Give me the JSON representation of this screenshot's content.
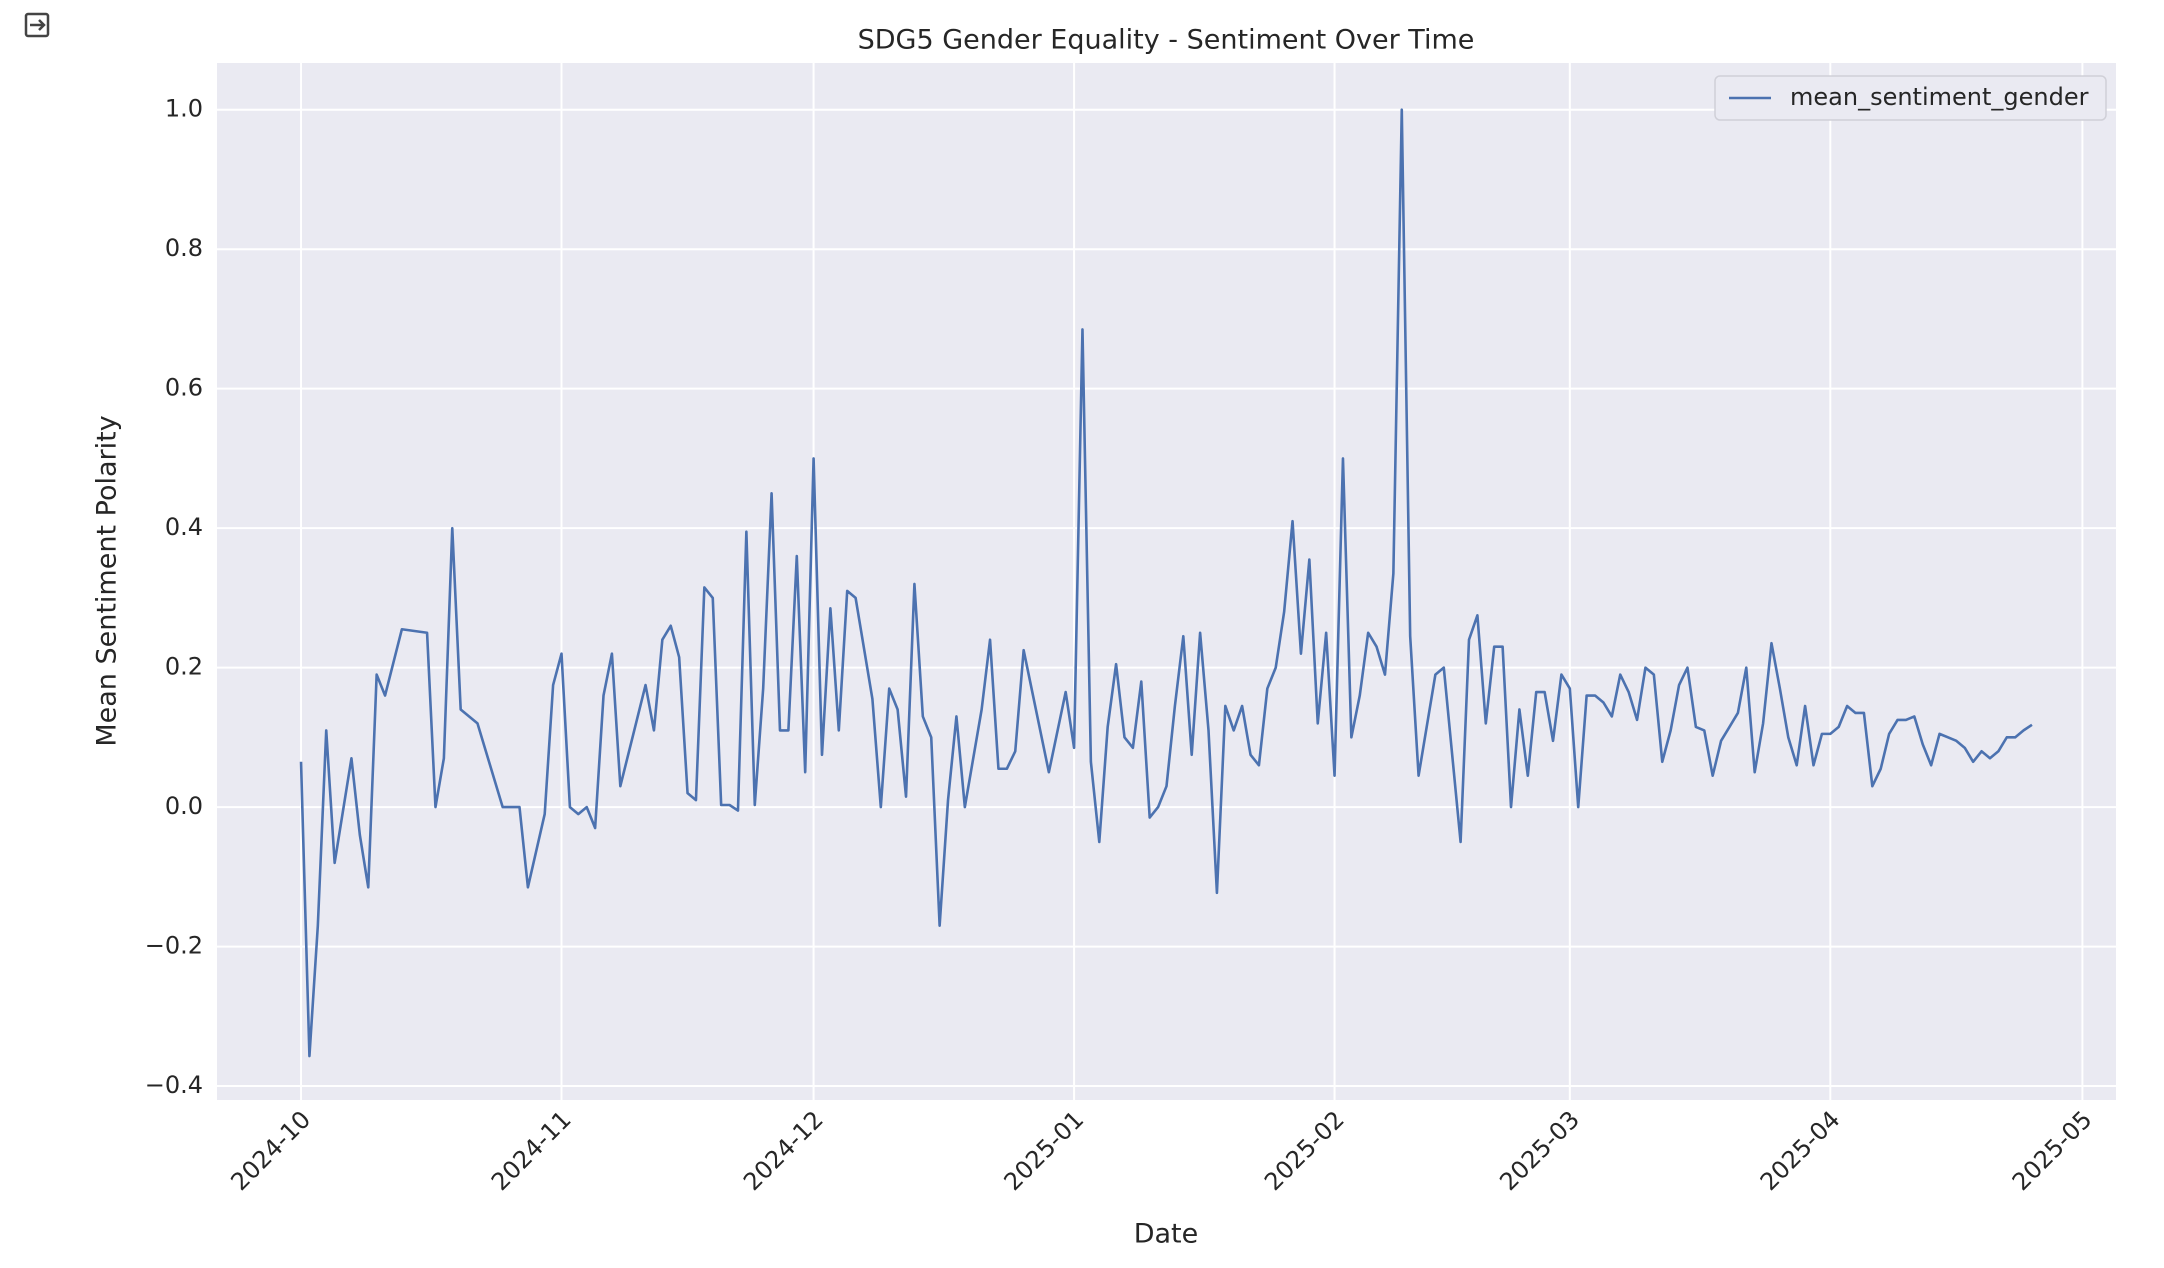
{
  "chart_data": {
    "type": "line",
    "title": "SDG5 Gender Equality - Sentiment Over Time",
    "x_label": "Date",
    "y_label": "Mean Sentiment Polarity",
    "xlim": [
      "2024-09-21",
      "2025-05-05"
    ],
    "ylim": [
      -0.42,
      1.067
    ],
    "xticks": [
      {
        "value": "2024-10-01",
        "label": "2024-10"
      },
      {
        "value": "2024-11-01",
        "label": "2024-11"
      },
      {
        "value": "2024-12-01",
        "label": "2024-12"
      },
      {
        "value": "2025-01-01",
        "label": "2025-01"
      },
      {
        "value": "2025-02-01",
        "label": "2025-02"
      },
      {
        "value": "2025-03-01",
        "label": "2025-03"
      },
      {
        "value": "2025-04-01",
        "label": "2025-04"
      },
      {
        "value": "2025-05-01",
        "label": "2025-05"
      }
    ],
    "yticks": [
      {
        "value": -0.4,
        "label": "−0.4"
      },
      {
        "value": -0.2,
        "label": "−0.2"
      },
      {
        "value": 0,
        "label": "0.0"
      },
      0.2,
      0.4,
      0.6,
      0.8,
      {
        "value": 1,
        "label": "1.0"
      }
    ],
    "grid": true,
    "legend_position": "upper right",
    "x": [
      "2024-10-01",
      "2024-10-02",
      "2024-10-03",
      "2024-10-04",
      "2024-10-05",
      "2024-10-07",
      "2024-10-08",
      "2024-10-09",
      "2024-10-10",
      "2024-10-11",
      "2024-10-13",
      "2024-10-16",
      "2024-10-17",
      "2024-10-18",
      "2024-10-19",
      "2024-10-20",
      "2024-10-22",
      "2024-10-25",
      "2024-10-27",
      "2024-10-28",
      "2024-10-30",
      "2024-10-31",
      "2024-11-01",
      "2024-11-02",
      "2024-11-03",
      "2024-11-04",
      "2024-11-05",
      "2024-11-06",
      "2024-11-07",
      "2024-11-08",
      "2024-11-11",
      "2024-11-12",
      "2024-11-13",
      "2024-11-14",
      "2024-11-15",
      "2024-11-16",
      "2024-11-17",
      "2024-11-18",
      "2024-11-19",
      "2024-11-20",
      "2024-11-21",
      "2024-11-22",
      "2024-11-23",
      "2024-11-24",
      "2024-11-25",
      "2024-11-26",
      "2024-11-27",
      "2024-11-28",
      "2024-11-29",
      "2024-11-30",
      "2024-12-01",
      "2024-12-02",
      "2024-12-03",
      "2024-12-04",
      "2024-12-05",
      "2024-12-06",
      "2024-12-08",
      "2024-12-09",
      "2024-12-10",
      "2024-12-11",
      "2024-12-12",
      "2024-12-13",
      "2024-12-14",
      "2024-12-15",
      "2024-12-16",
      "2024-12-17",
      "2024-12-18",
      "2024-12-19",
      "2024-12-21",
      "2024-12-22",
      "2024-12-23",
      "2024-12-24",
      "2024-12-25",
      "2024-12-26",
      "2024-12-29",
      "2024-12-31",
      "2025-01-01",
      "2025-01-02",
      "2025-01-03",
      "2025-01-04",
      "2025-01-05",
      "2025-01-06",
      "2025-01-07",
      "2025-01-08",
      "2025-01-09",
      "2025-01-10",
      "2025-01-11",
      "2025-01-12",
      "2025-01-13",
      "2025-01-14",
      "2025-01-15",
      "2025-01-16",
      "2025-01-17",
      "2025-01-18",
      "2025-01-19",
      "2025-01-20",
      "2025-01-21",
      "2025-01-22",
      "2025-01-23",
      "2025-01-24",
      "2025-01-25",
      "2025-01-26",
      "2025-01-27",
      "2025-01-28",
      "2025-01-29",
      "2025-01-30",
      "2025-01-31",
      "2025-02-01",
      "2025-02-02",
      "2025-02-03",
      "2025-02-04",
      "2025-02-05",
      "2025-02-06",
      "2025-02-07",
      "2025-02-08",
      "2025-02-09",
      "2025-02-10",
      "2025-02-11",
      "2025-02-13",
      "2025-02-14",
      "2025-02-16",
      "2025-02-17",
      "2025-02-18",
      "2025-02-19",
      "2025-02-20",
      "2025-02-21",
      "2025-02-22",
      "2025-02-23",
      "2025-02-24",
      "2025-02-25",
      "2025-02-26",
      "2025-02-27",
      "2025-02-28",
      "2025-03-01",
      "2025-03-02",
      "2025-03-03",
      "2025-03-04",
      "2025-03-05",
      "2025-03-06",
      "2025-03-07",
      "2025-03-08",
      "2025-03-09",
      "2025-03-10",
      "2025-03-11",
      "2025-03-12",
      "2025-03-13",
      "2025-03-14",
      "2025-03-15",
      "2025-03-16",
      "2025-03-17",
      "2025-03-18",
      "2025-03-19",
      "2025-03-20",
      "2025-03-21",
      "2025-03-22",
      "2025-03-23",
      "2025-03-24",
      "2025-03-25",
      "2025-03-26",
      "2025-03-27",
      "2025-03-28",
      "2025-03-29",
      "2025-03-30",
      "2025-03-31",
      "2025-04-01",
      "2025-04-02",
      "2025-04-03",
      "2025-04-04",
      "2025-04-05",
      "2025-04-06",
      "2025-04-07",
      "2025-04-08",
      "2025-04-09",
      "2025-04-10",
      "2025-04-11",
      "2025-04-12",
      "2025-04-13",
      "2025-04-14",
      "2025-04-15",
      "2025-04-16",
      "2025-04-17",
      "2025-04-18",
      "2025-04-19",
      "2025-04-20",
      "2025-04-21",
      "2025-04-22",
      "2025-04-23",
      "2025-04-24",
      "2025-04-25"
    ],
    "series": [
      {
        "name": "mean_sentiment_gender",
        "color": "#4c72b0",
        "values": [
          0.065,
          -0.357,
          -0.17,
          0.11,
          -0.08,
          0.07,
          -0.04,
          -0.115,
          0.19,
          0.16,
          0.255,
          0.25,
          0.0,
          0.07,
          0.4,
          0.14,
          0.12,
          0.0,
          0.0,
          -0.115,
          -0.01,
          0.175,
          0.22,
          0.0,
          -0.01,
          0.0,
          -0.03,
          0.16,
          0.22,
          0.03,
          0.175,
          0.11,
          0.24,
          0.26,
          0.215,
          0.02,
          0.01,
          0.315,
          0.3,
          0.003,
          0.003,
          -0.005,
          0.395,
          0.003,
          0.17,
          0.45,
          0.11,
          0.11,
          0.36,
          0.05,
          0.5,
          0.075,
          0.285,
          0.11,
          0.31,
          0.3,
          0.155,
          0.0,
          0.17,
          0.14,
          0.015,
          0.32,
          0.13,
          0.1,
          -0.17,
          0.01,
          0.13,
          0.0,
          0.14,
          0.24,
          0.055,
          0.055,
          0.08,
          0.225,
          0.05,
          0.165,
          0.085,
          0.685,
          0.065,
          -0.05,
          0.115,
          0.205,
          0.1,
          0.085,
          0.18,
          -0.015,
          0.0,
          0.03,
          0.145,
          0.245,
          0.075,
          0.25,
          0.11,
          -0.123,
          0.145,
          0.11,
          0.145,
          0.075,
          0.06,
          0.17,
          0.2,
          0.28,
          0.41,
          0.22,
          0.355,
          0.12,
          0.25,
          0.045,
          0.5,
          0.1,
          0.16,
          0.25,
          0.23,
          0.19,
          0.335,
          1.0,
          0.245,
          0.045,
          0.19,
          0.2,
          -0.05,
          0.24,
          0.275,
          0.12,
          0.23,
          0.23,
          0.0,
          0.14,
          0.045,
          0.165,
          0.165,
          0.095,
          0.19,
          0.17,
          0.0,
          0.16,
          0.16,
          0.15,
          0.13,
          0.19,
          0.165,
          0.125,
          0.2,
          0.19,
          0.065,
          0.11,
          0.175,
          0.2,
          0.115,
          0.11,
          0.045,
          0.095,
          0.115,
          0.135,
          0.2,
          0.05,
          0.12,
          0.235,
          0.17,
          0.1,
          0.06,
          0.145,
          0.06,
          0.105,
          0.105,
          0.115,
          0.145,
          0.135,
          0.135,
          0.03,
          0.055,
          0.105,
          0.125,
          0.125,
          0.13,
          0.09,
          0.06,
          0.105,
          0.1,
          0.095,
          0.085,
          0.065,
          0.08,
          0.07,
          0.08,
          0.1,
          0.1,
          0.11,
          0.118
        ]
      }
    ]
  }
}
